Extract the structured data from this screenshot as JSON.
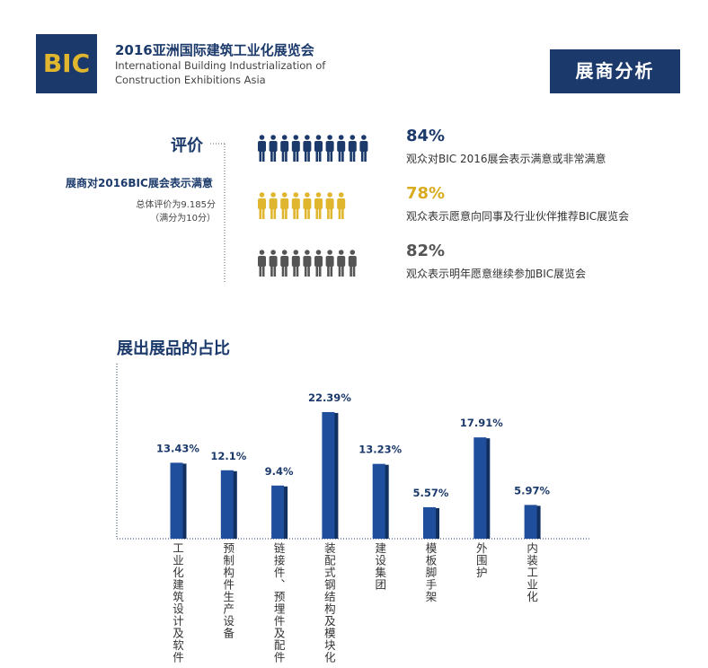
{
  "header": {
    "logo": "BIC",
    "title": "2016亚洲国际建筑工业化展览会",
    "subtitle_lines": [
      "International Building Industrialization of",
      "Construction Exhibitions Asia"
    ],
    "badge": "展商分析"
  },
  "evaluation": {
    "label": "评价",
    "heading": "展商对2016BIC展会表示满意",
    "score_lines": [
      "总体评价为9.185分",
      "（满分为10分）"
    ],
    "items": [
      {
        "percent": "84%",
        "text": "观众对BIC 2016展会表示满意或非常满意"
      },
      {
        "percent": "78%",
        "text": "观众表示愿意向同事及行业伙伴推荐BIC展览会"
      },
      {
        "percent": "82%",
        "text": "观众表示明年愿意继续参加BIC展览会"
      }
    ]
  },
  "chart_data": {
    "type": "bar",
    "title": "展出展品的占比",
    "categories": [
      "工业化建筑设计及软件",
      "预制构件生产设备",
      "链接件、预埋件及配件",
      "装配式钢结构及模块化",
      "建设集团",
      "模板脚手架",
      "外围护",
      "内装工业化"
    ],
    "values": [
      13.43,
      12.1,
      9.4,
      22.39,
      13.23,
      5.57,
      17.91,
      5.97
    ],
    "value_labels": [
      "13.43%",
      "12.1%",
      "9.4%",
      "22.39%",
      "13.23%",
      "5.57%",
      "17.91%",
      "5.97%"
    ],
    "color": "#1f4e9c"
  }
}
